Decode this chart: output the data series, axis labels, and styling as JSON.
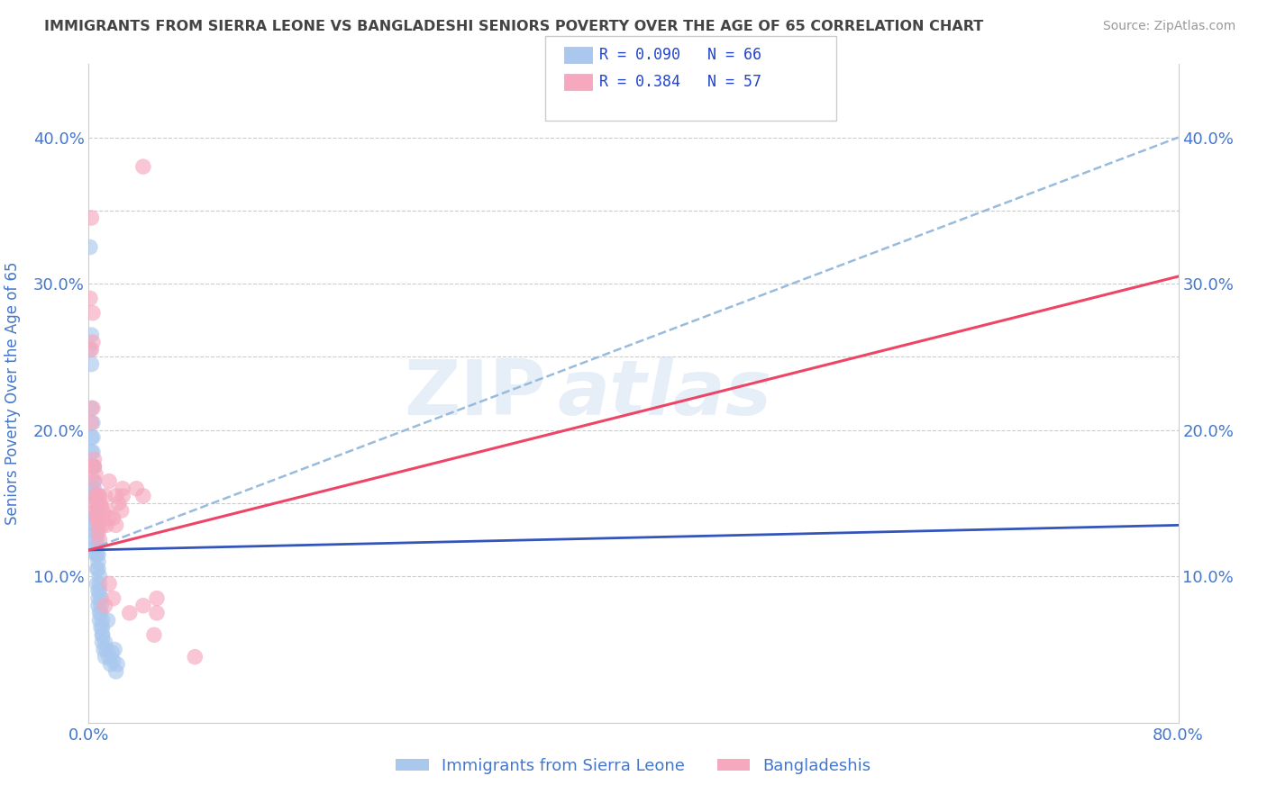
{
  "title": "IMMIGRANTS FROM SIERRA LEONE VS BANGLADESHI SENIORS POVERTY OVER THE AGE OF 65 CORRELATION CHART",
  "source": "Source: ZipAtlas.com",
  "ylabel": "Seniors Poverty Over the Age of 65",
  "xlim": [
    0.0,
    0.8
  ],
  "ylim": [
    0.0,
    0.45
  ],
  "xticks": [
    0.0,
    0.1,
    0.2,
    0.3,
    0.4,
    0.5,
    0.6,
    0.7,
    0.8
  ],
  "xticklabels": [
    "0.0%",
    "",
    "",
    "",
    "",
    "",
    "",
    "",
    "80.0%"
  ],
  "ytick_positions": [
    0.1,
    0.2,
    0.3,
    0.4
  ],
  "ytick_labels": [
    "10.0%",
    "20.0%",
    "30.0%",
    "40.0%"
  ],
  "legend_r_blue": "R = 0.090",
  "legend_n_blue": "N = 66",
  "legend_r_pink": "R = 0.384",
  "legend_n_pink": "N = 57",
  "legend_label_blue": "Immigrants from Sierra Leone",
  "legend_label_pink": "Bangladeshis",
  "watermark": "ZIPatlas",
  "blue_trend_x0": 0.0,
  "blue_trend_y0": 0.118,
  "blue_trend_x1": 0.8,
  "blue_trend_y1": 0.135,
  "dash_trend_x0": 0.0,
  "dash_trend_y0": 0.118,
  "dash_trend_x1": 0.8,
  "dash_trend_y1": 0.4,
  "pink_trend_x0": 0.0,
  "pink_trend_y0": 0.118,
  "pink_trend_x1": 0.8,
  "pink_trend_y1": 0.305,
  "grid_yticks": [
    0.1,
    0.15,
    0.2,
    0.25,
    0.3,
    0.35,
    0.4
  ],
  "background_color": "#ffffff",
  "scatter_blue_color": "#aac8ee",
  "scatter_pink_color": "#f5a8be",
  "trend_blue_color": "#3355bb",
  "trend_pink_color": "#ee4466",
  "trend_dash_color": "#99bbdd",
  "title_color": "#444444",
  "axis_label_color": "#4477cc",
  "tick_label_color": "#4477cc",
  "blue_scatter": [
    [
      0.001,
      0.255
    ],
    [
      0.001,
      0.325
    ],
    [
      0.002,
      0.265
    ],
    [
      0.002,
      0.215
    ],
    [
      0.002,
      0.195
    ],
    [
      0.002,
      0.245
    ],
    [
      0.002,
      0.185
    ],
    [
      0.003,
      0.205
    ],
    [
      0.003,
      0.175
    ],
    [
      0.003,
      0.195
    ],
    [
      0.003,
      0.155
    ],
    [
      0.003,
      0.185
    ],
    [
      0.003,
      0.16
    ],
    [
      0.004,
      0.175
    ],
    [
      0.004,
      0.155
    ],
    [
      0.004,
      0.14
    ],
    [
      0.004,
      0.165
    ],
    [
      0.004,
      0.14
    ],
    [
      0.004,
      0.16
    ],
    [
      0.004,
      0.135
    ],
    [
      0.005,
      0.155
    ],
    [
      0.005,
      0.13
    ],
    [
      0.005,
      0.145
    ],
    [
      0.005,
      0.125
    ],
    [
      0.005,
      0.14
    ],
    [
      0.005,
      0.12
    ],
    [
      0.005,
      0.115
    ],
    [
      0.005,
      0.135
    ],
    [
      0.006,
      0.115
    ],
    [
      0.006,
      0.13
    ],
    [
      0.006,
      0.105
    ],
    [
      0.006,
      0.125
    ],
    [
      0.006,
      0.095
    ],
    [
      0.006,
      0.12
    ],
    [
      0.007,
      0.09
    ],
    [
      0.007,
      0.115
    ],
    [
      0.007,
      0.085
    ],
    [
      0.007,
      0.11
    ],
    [
      0.007,
      0.105
    ],
    [
      0.007,
      0.08
    ],
    [
      0.008,
      0.1
    ],
    [
      0.008,
      0.075
    ],
    [
      0.008,
      0.095
    ],
    [
      0.008,
      0.09
    ],
    [
      0.008,
      0.07
    ],
    [
      0.009,
      0.085
    ],
    [
      0.009,
      0.065
    ],
    [
      0.009,
      0.08
    ],
    [
      0.009,
      0.075
    ],
    [
      0.01,
      0.06
    ],
    [
      0.01,
      0.07
    ],
    [
      0.01,
      0.055
    ],
    [
      0.01,
      0.065
    ],
    [
      0.01,
      0.06
    ],
    [
      0.011,
      0.05
    ],
    [
      0.012,
      0.055
    ],
    [
      0.012,
      0.045
    ],
    [
      0.013,
      0.05
    ],
    [
      0.014,
      0.07
    ],
    [
      0.015,
      0.045
    ],
    [
      0.016,
      0.04
    ],
    [
      0.017,
      0.048
    ],
    [
      0.018,
      0.042
    ],
    [
      0.019,
      0.05
    ],
    [
      0.02,
      0.035
    ],
    [
      0.021,
      0.04
    ]
  ],
  "pink_scatter": [
    [
      0.001,
      0.29
    ],
    [
      0.002,
      0.255
    ],
    [
      0.002,
      0.345
    ],
    [
      0.002,
      0.205
    ],
    [
      0.003,
      0.26
    ],
    [
      0.003,
      0.215
    ],
    [
      0.003,
      0.175
    ],
    [
      0.003,
      0.28
    ],
    [
      0.004,
      0.165
    ],
    [
      0.004,
      0.18
    ],
    [
      0.004,
      0.175
    ],
    [
      0.005,
      0.155
    ],
    [
      0.005,
      0.145
    ],
    [
      0.005,
      0.17
    ],
    [
      0.005,
      0.15
    ],
    [
      0.006,
      0.155
    ],
    [
      0.006,
      0.14
    ],
    [
      0.006,
      0.14
    ],
    [
      0.007,
      0.135
    ],
    [
      0.007,
      0.145
    ],
    [
      0.007,
      0.155
    ],
    [
      0.007,
      0.13
    ],
    [
      0.007,
      0.145
    ],
    [
      0.007,
      0.15
    ],
    [
      0.008,
      0.14
    ],
    [
      0.008,
      0.155
    ],
    [
      0.008,
      0.125
    ],
    [
      0.008,
      0.15
    ],
    [
      0.009,
      0.148
    ],
    [
      0.009,
      0.142
    ],
    [
      0.01,
      0.135
    ],
    [
      0.01,
      0.145
    ],
    [
      0.01,
      0.14
    ],
    [
      0.012,
      0.08
    ],
    [
      0.012,
      0.155
    ],
    [
      0.013,
      0.145
    ],
    [
      0.013,
      0.135
    ],
    [
      0.015,
      0.14
    ],
    [
      0.015,
      0.165
    ],
    [
      0.015,
      0.095
    ],
    [
      0.018,
      0.085
    ],
    [
      0.018,
      0.14
    ],
    [
      0.02,
      0.155
    ],
    [
      0.02,
      0.135
    ],
    [
      0.022,
      0.15
    ],
    [
      0.024,
      0.145
    ],
    [
      0.025,
      0.16
    ],
    [
      0.025,
      0.155
    ],
    [
      0.03,
      0.075
    ],
    [
      0.035,
      0.16
    ],
    [
      0.04,
      0.08
    ],
    [
      0.04,
      0.155
    ],
    [
      0.04,
      0.38
    ],
    [
      0.048,
      0.06
    ],
    [
      0.05,
      0.085
    ],
    [
      0.05,
      0.075
    ],
    [
      0.078,
      0.045
    ]
  ]
}
